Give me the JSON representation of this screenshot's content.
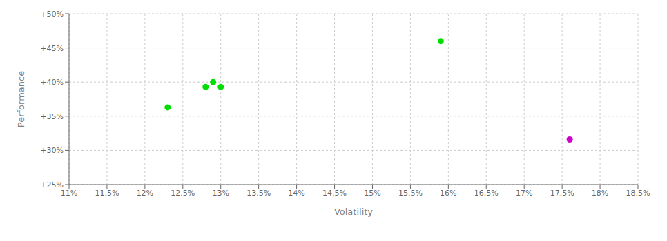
{
  "chart_data": {
    "type": "scatter",
    "xlabel": "Volatility",
    "ylabel": "Performance",
    "series": [
      {
        "color": "#00dd00",
        "x": [
          0.123,
          0.128,
          0.129,
          0.13,
          0.159
        ],
        "values": [
          0.363,
          0.393,
          0.4,
          0.393,
          0.46
        ]
      },
      {
        "color": "#cc00cc",
        "x": [
          0.176
        ],
        "values": [
          0.316
        ]
      }
    ],
    "xlim": [
      0.11,
      0.185
    ],
    "ylim": [
      0.25,
      0.5
    ],
    "xticks": [
      {
        "value": 0.11,
        "label": "11%"
      },
      {
        "value": 0.115,
        "label": "11.5%"
      },
      {
        "value": 0.12,
        "label": "12%"
      },
      {
        "value": 0.125,
        "label": "12.5%"
      },
      {
        "value": 0.13,
        "label": "13%"
      },
      {
        "value": 0.135,
        "label": "13.5%"
      },
      {
        "value": 0.14,
        "label": "14%"
      },
      {
        "value": 0.145,
        "label": "14.5%"
      },
      {
        "value": 0.15,
        "label": "15%"
      },
      {
        "value": 0.155,
        "label": "15.5%"
      },
      {
        "value": 0.16,
        "label": "16%"
      },
      {
        "value": 0.165,
        "label": "16.5%"
      },
      {
        "value": 0.17,
        "label": "17%"
      },
      {
        "value": 0.175,
        "label": "17.5%"
      },
      {
        "value": 0.18,
        "label": "18%"
      },
      {
        "value": 0.185,
        "label": "18.5%"
      }
    ],
    "yticks": [
      {
        "value": 0.25,
        "label": "+25%"
      },
      {
        "value": 0.3,
        "label": "+30%"
      },
      {
        "value": 0.35,
        "label": "+35%"
      },
      {
        "value": 0.4,
        "label": "+40%"
      },
      {
        "value": 0.45,
        "label": "+45%"
      },
      {
        "value": 0.5,
        "label": "+50%"
      }
    ],
    "grid": true
  }
}
